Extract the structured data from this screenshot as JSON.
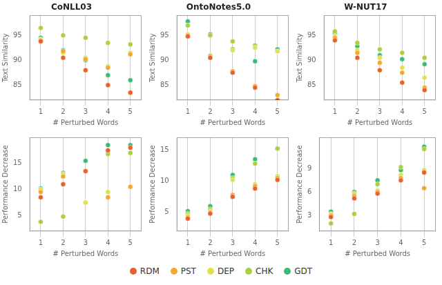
{
  "chart_data": [
    {
      "type": "scatter",
      "title": "CoNLL03",
      "x_label": "# Perturbed Words",
      "y_label": "Text Similarity",
      "x": [
        1,
        2,
        3,
        4,
        5
      ],
      "series": [
        {
          "name": "RDM",
          "color": "#E8612C",
          "values": [
            93.8,
            90.5,
            88.0,
            85.0,
            83.5
          ]
        },
        {
          "name": "PST",
          "color": "#F0A830",
          "values": [
            94.0,
            91.8,
            90.2,
            88.5,
            91.2
          ]
        },
        {
          "name": "DEP",
          "color": "#E0E050",
          "values": [
            94.2,
            91.5,
            90.5,
            88.8,
            91.5
          ]
        },
        {
          "name": "CHK",
          "color": "#A8D040",
          "values": [
            96.5,
            95.0,
            94.5,
            93.5,
            93.2
          ]
        },
        {
          "name": "GDT",
          "color": "#3CB878",
          "values": [
            94.5,
            92.0,
            90.0,
            87.0,
            86.0
          ]
        }
      ],
      "xlim": [
        0.5,
        5.5
      ],
      "xticks": [
        1,
        2,
        3,
        4,
        5
      ],
      "ylim": [
        82,
        99
      ],
      "yticks": [
        85,
        90,
        95
      ],
      "grid": "x",
      "legend": "bottom"
    },
    {
      "type": "scatter",
      "title": "OntoNotes5.0",
      "x_label": "# Perturbed Words",
      "y_label": "Text Similarity",
      "x": [
        1,
        2,
        3,
        4,
        5
      ],
      "series": [
        {
          "name": "RDM",
          "color": "#E8612C",
          "values": [
            94.8,
            90.5,
            87.5,
            84.5,
            82.0
          ]
        },
        {
          "name": "PST",
          "color": "#F0A830",
          "values": [
            95.0,
            90.8,
            87.8,
            84.8,
            83.0
          ]
        },
        {
          "name": "DEP",
          "color": "#E0E050",
          "values": [
            95.2,
            91.0,
            92.0,
            92.5,
            91.8
          ]
        },
        {
          "name": "CHK",
          "color": "#A8D040",
          "values": [
            97.0,
            95.0,
            93.8,
            93.0,
            91.8
          ]
        },
        {
          "name": "GDT",
          "color": "#3CB878",
          "values": [
            97.8,
            95.2,
            92.2,
            89.8,
            92.2
          ]
        }
      ],
      "xlim": [
        0.5,
        5.5
      ],
      "xticks": [
        1,
        2,
        3,
        4,
        5
      ],
      "ylim": [
        82,
        99
      ],
      "yticks": [
        85,
        90,
        95
      ],
      "grid": "x",
      "legend": "bottom"
    },
    {
      "type": "scatter",
      "title": "W-NUT17",
      "x_label": "# Perturbed Words",
      "y_label": "Text Similarity",
      "x": [
        1,
        2,
        3,
        4,
        5
      ],
      "series": [
        {
          "name": "RDM",
          "color": "#E8612C",
          "values": [
            94.0,
            90.5,
            88.0,
            85.5,
            84.0
          ]
        },
        {
          "name": "PST",
          "color": "#F0A830",
          "values": [
            94.5,
            91.5,
            89.5,
            87.5,
            84.5
          ]
        },
        {
          "name": "DEP",
          "color": "#E0E050",
          "values": [
            94.8,
            92.0,
            90.5,
            88.5,
            86.5
          ]
        },
        {
          "name": "CHK",
          "color": "#A8D040",
          "values": [
            95.8,
            93.5,
            92.2,
            91.5,
            90.5
          ]
        },
        {
          "name": "GDT",
          "color": "#3CB878",
          "values": [
            95.5,
            92.8,
            91.0,
            90.2,
            89.2
          ]
        }
      ],
      "xlim": [
        0.5,
        5.5
      ],
      "xticks": [
        1,
        2,
        3,
        4,
        5
      ],
      "ylim": [
        82,
        99
      ],
      "yticks": [
        85,
        90,
        95
      ],
      "grid": "x",
      "legend": "bottom"
    },
    {
      "type": "scatter",
      "x_label": "# Perturbed Words",
      "y_label": "Performance Decrease",
      "x": [
        1,
        2,
        3,
        4,
        5
      ],
      "series": [
        {
          "name": "RDM",
          "color": "#E8612C",
          "values": [
            8.5,
            11.0,
            13.5,
            17.5,
            18.0
          ]
        },
        {
          "name": "PST",
          "color": "#F0A830",
          "values": [
            9.5,
            12.5,
            13.5,
            8.5,
            10.5
          ]
        },
        {
          "name": "DEP",
          "color": "#E0E050",
          "values": [
            10.0,
            13.0,
            7.5,
            9.5,
            10.5
          ]
        },
        {
          "name": "CHK",
          "color": "#A8D040",
          "values": [
            3.8,
            4.8,
            7.5,
            16.8,
            17.0
          ]
        },
        {
          "name": "GDT",
          "color": "#3CB878",
          "values": [
            10.2,
            13.2,
            15.5,
            18.5,
            18.5
          ]
        }
      ],
      "xlim": [
        0.5,
        5.5
      ],
      "xticks": [
        1,
        2,
        3,
        4,
        5
      ],
      "ylim": [
        2,
        20
      ],
      "yticks": [
        5,
        10,
        15
      ],
      "grid": "x",
      "legend": "bottom"
    },
    {
      "type": "scatter",
      "x_label": "# Perturbed Words",
      "y_label": "Performance Decrease",
      "x": [
        1,
        2,
        3,
        4,
        5
      ],
      "series": [
        {
          "name": "RDM",
          "color": "#E8612C",
          "values": [
            4.0,
            4.8,
            7.5,
            8.8,
            10.2
          ]
        },
        {
          "name": "PST",
          "color": "#F0A830",
          "values": [
            4.2,
            5.0,
            7.8,
            9.2,
            10.5
          ]
        },
        {
          "name": "DEP",
          "color": "#E0E050",
          "values": [
            4.5,
            5.2,
            10.2,
            9.5,
            10.8
          ]
        },
        {
          "name": "CHK",
          "color": "#A8D040",
          "values": [
            4.8,
            5.5,
            10.5,
            12.8,
            15.2
          ]
        },
        {
          "name": "GDT",
          "color": "#3CB878",
          "values": [
            5.2,
            6.0,
            11.0,
            13.5,
            15.2
          ]
        }
      ],
      "xlim": [
        0.5,
        5.5
      ],
      "xticks": [
        1,
        2,
        3,
        4,
        5
      ],
      "ylim": [
        2,
        17
      ],
      "yticks": [
        5,
        10,
        15
      ],
      "grid": "x",
      "legend": "bottom"
    },
    {
      "type": "scatter",
      "x_label": "# Perturbed Words",
      "y_label": "Performance Decrease",
      "x": [
        1,
        2,
        3,
        4,
        5
      ],
      "series": [
        {
          "name": "RDM",
          "color": "#E8612C",
          "values": [
            2.8,
            5.2,
            5.8,
            7.5,
            8.5
          ]
        },
        {
          "name": "PST",
          "color": "#F0A830",
          "values": [
            3.0,
            5.5,
            6.0,
            7.8,
            6.5
          ]
        },
        {
          "name": "DEP",
          "color": "#E0E050",
          "values": [
            3.2,
            5.8,
            6.2,
            8.2,
            8.8
          ]
        },
        {
          "name": "CHK",
          "color": "#A8D040",
          "values": [
            2.0,
            3.2,
            7.0,
            9.2,
            11.5
          ]
        },
        {
          "name": "GDT",
          "color": "#3CB878",
          "values": [
            3.5,
            6.0,
            7.5,
            8.8,
            11.8
          ]
        }
      ],
      "xlim": [
        0.5,
        5.5
      ],
      "xticks": [
        1,
        2,
        3,
        4,
        5
      ],
      "ylim": [
        1,
        13
      ],
      "yticks": [
        3,
        6,
        9
      ],
      "grid": "x",
      "legend": "bottom"
    }
  ]
}
